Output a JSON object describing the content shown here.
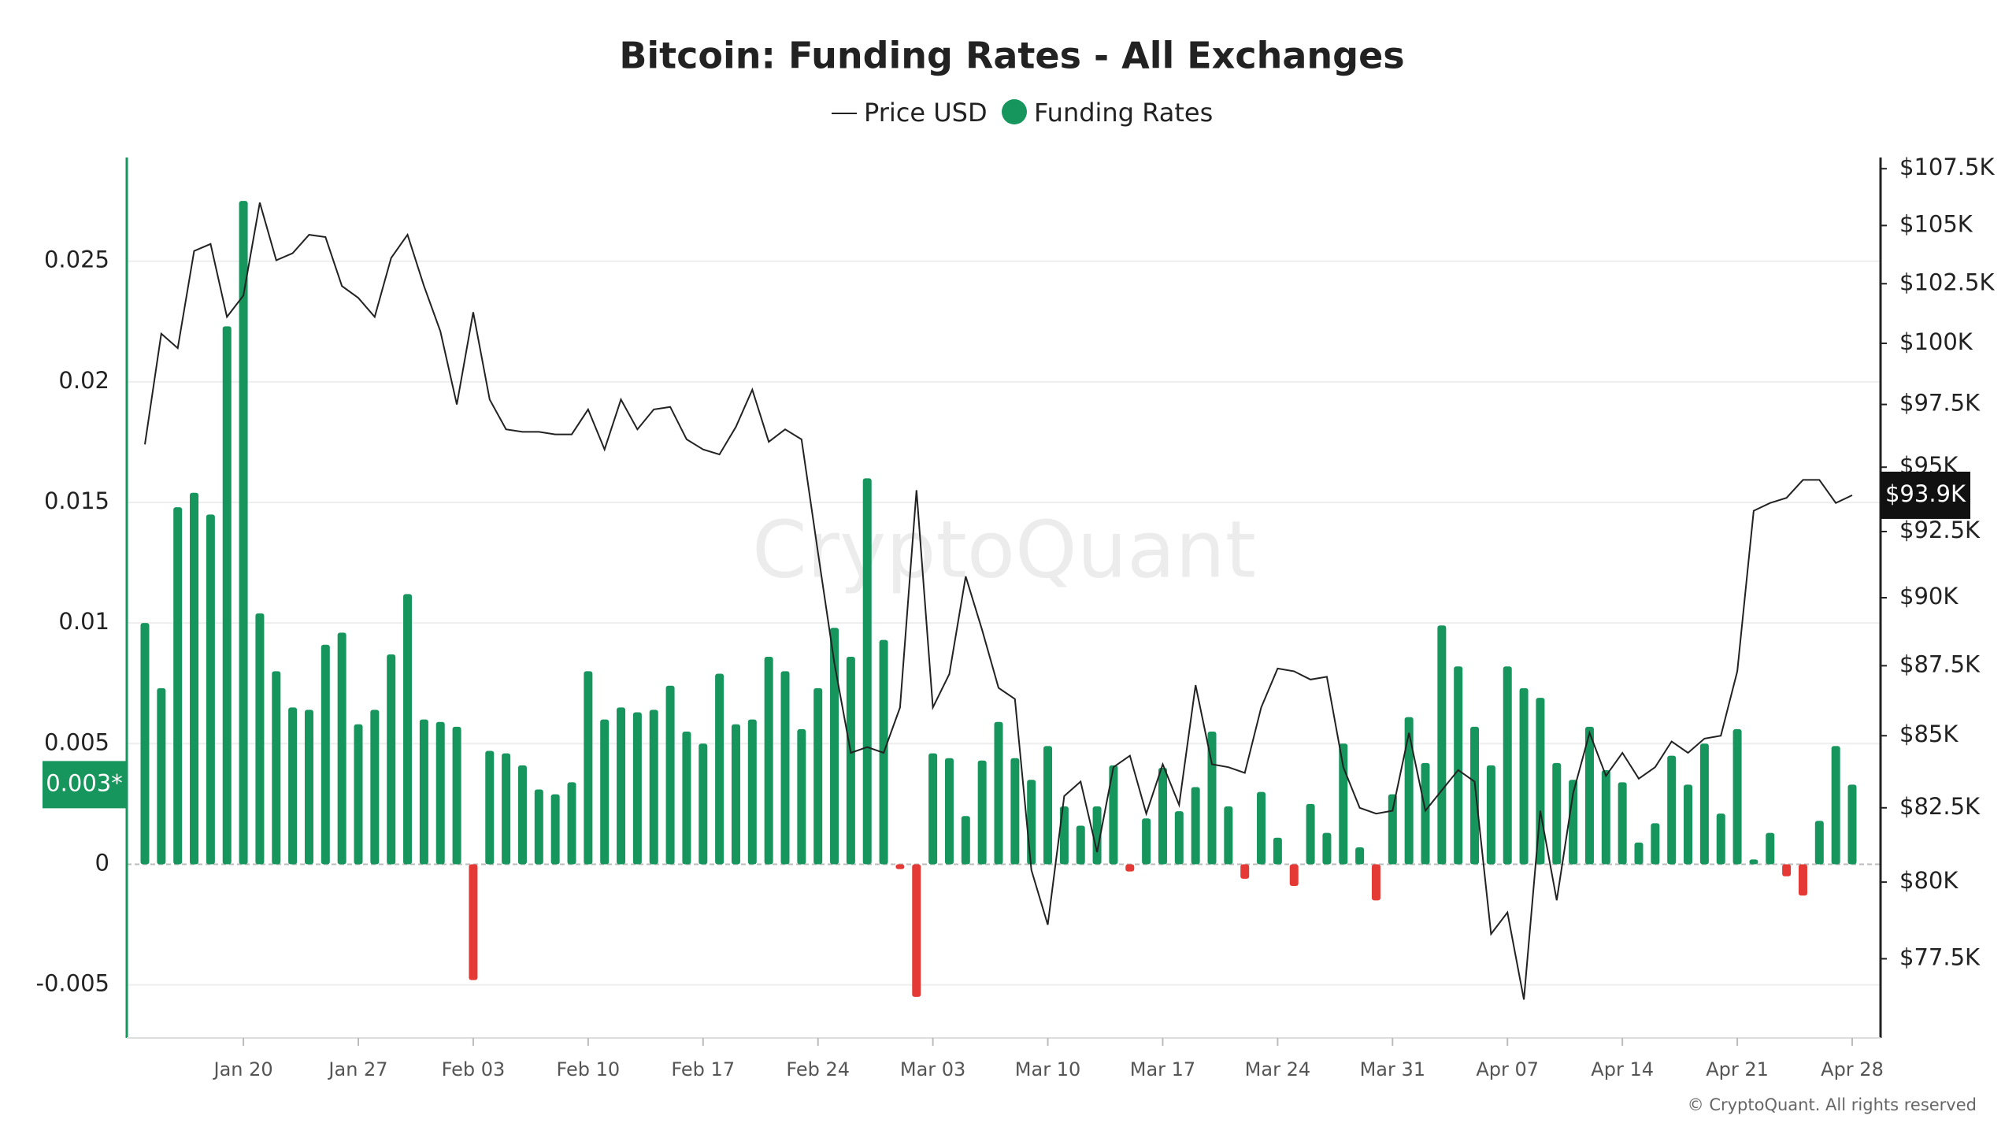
{
  "chart_data": {
    "type": "bar",
    "title": "Bitcoin: Funding Rates - All Exchanges",
    "watermark": "CryptoQuant",
    "footer": "© CryptoQuant. All rights reserved",
    "categories": [
      null,
      null,
      null,
      null,
      null,
      null,
      "Jan 20",
      null,
      null,
      null,
      null,
      null,
      null,
      "Jan 27",
      null,
      null,
      null,
      null,
      null,
      null,
      "Feb 03",
      null,
      null,
      null,
      null,
      null,
      null,
      "Feb 10",
      null,
      null,
      null,
      null,
      null,
      null,
      "Feb 17",
      null,
      null,
      null,
      null,
      null,
      null,
      "Feb 24",
      null,
      null,
      null,
      null,
      null,
      null,
      "Mar 03",
      null,
      null,
      null,
      null,
      null,
      null,
      "Mar 10",
      null,
      null,
      null,
      null,
      null,
      null,
      "Mar 17",
      null,
      null,
      null,
      null,
      null,
      null,
      "Mar 24",
      null,
      null,
      null,
      null,
      null,
      null,
      "Mar 31",
      null,
      null,
      null,
      null,
      null,
      null,
      "Apr 07",
      null,
      null,
      null,
      null,
      null,
      null,
      "Apr 14",
      null,
      null,
      null,
      null,
      null,
      null,
      "Apr 21",
      null,
      null,
      null,
      null,
      null,
      null,
      "Apr 28"
    ],
    "series": [
      {
        "name": "Price USD",
        "type": "line",
        "axis": "y2",
        "color": "#222222",
        "values": [
          95900,
          100400,
          99800,
          103900,
          104200,
          101100,
          102000,
          106000,
          103500,
          103800,
          104600,
          104500,
          102400,
          101900,
          101100,
          103600,
          104600,
          102400,
          100500,
          97500,
          101300,
          97700,
          96500,
          96400,
          96400,
          96300,
          96300,
          97300,
          95700,
          97700,
          96500,
          97300,
          97400,
          96100,
          95700,
          95500,
          96600,
          98100,
          96000,
          96500,
          96100,
          91700,
          87600,
          84400,
          84600,
          84400,
          86000,
          94100,
          86000,
          87200,
          90800,
          88800,
          86700,
          86300,
          80400,
          78600,
          82900,
          83400,
          81000,
          83900,
          84300,
          82300,
          84000,
          82600,
          86800,
          84000,
          83900,
          83700,
          86000,
          87400,
          87300,
          87000,
          87100,
          83900,
          82500,
          82300,
          82400,
          85100,
          82400,
          83100,
          83800,
          83400,
          78300,
          79000,
          76200,
          82400,
          79400,
          83000,
          85100,
          83600,
          84400,
          83500,
          83900,
          84800,
          84400,
          84900,
          85000,
          87300,
          93300,
          93600,
          93800,
          94500,
          94500,
          93600,
          93900
        ]
      },
      {
        "name": "Funding Rates",
        "type": "bar",
        "color": "#16955c",
        "negative_color": "#e53935",
        "values": [
          0.01,
          0.0073,
          0.0148,
          0.0154,
          0.0145,
          0.0223,
          0.0275,
          0.0104,
          0.008,
          0.0065,
          0.0064,
          0.0091,
          0.0096,
          0.0058,
          0.0064,
          0.0087,
          0.0112,
          0.006,
          0.0059,
          0.0057,
          -0.0048,
          0.0047,
          0.0046,
          0.0041,
          0.0031,
          0.0029,
          0.0034,
          0.008,
          0.006,
          0.0065,
          0.0063,
          0.0064,
          0.0074,
          0.0055,
          0.005,
          0.0079,
          0.0058,
          0.006,
          0.0086,
          0.008,
          0.0056,
          0.0073,
          0.0098,
          0.0086,
          0.016,
          0.0093,
          -0.0002,
          -0.0055,
          0.0046,
          0.0044,
          0.002,
          0.0043,
          0.0059,
          0.0044,
          0.0035,
          0.0049,
          0.0024,
          0.0016,
          0.0024,
          0.0041,
          -0.0003,
          0.0019,
          0.004,
          0.0022,
          0.0032,
          0.0055,
          0.0024,
          -0.0006,
          0.003,
          0.0011,
          -0.0009,
          0.0025,
          0.0013,
          0.005,
          0.0007,
          -0.0015,
          0.0029,
          0.0061,
          0.0042,
          0.0099,
          0.0082,
          0.0057,
          0.0041,
          0.0082,
          0.0073,
          0.0069,
          0.0042,
          0.0035,
          0.0057,
          0.0039,
          0.0034,
          0.0009,
          0.0017,
          0.0045,
          0.0033,
          0.005,
          0.0021,
          0.0056,
          0.0002,
          0.0013,
          -0.0005,
          -0.0013,
          0.0018,
          0.0049,
          0.0033
        ]
      }
    ],
    "ylim": [
      -0.0072,
      0.0293
    ],
    "yticks": [
      -0.005,
      0,
      0.005,
      0.01,
      0.015,
      0.02,
      0.025
    ],
    "y2lim": [
      75000,
      108000
    ],
    "y2log": true,
    "y2ticks": [
      {
        "value": 77500,
        "label": "$77.5K"
      },
      {
        "value": 80000,
        "label": "$80K"
      },
      {
        "value": 82500,
        "label": "$82.5K"
      },
      {
        "value": 85000,
        "label": "$85K"
      },
      {
        "value": 87500,
        "label": "$87.5K"
      },
      {
        "value": 90000,
        "label": "$90K"
      },
      {
        "value": 92500,
        "label": "$92.5K"
      },
      {
        "value": 95000,
        "label": "$95K"
      },
      {
        "value": 97500,
        "label": "$97.5K"
      },
      {
        "value": 100000,
        "label": "$100K"
      },
      {
        "value": 102500,
        "label": "$102.5K"
      },
      {
        "value": 105000,
        "label": "$105K"
      },
      {
        "value": 107500,
        "label": "$107.5K"
      }
    ],
    "y_current": {
      "value": 0.0033,
      "label": "0.003*"
    },
    "y2_current": {
      "value": 93900,
      "label": "$93.9K"
    },
    "grid": true
  }
}
